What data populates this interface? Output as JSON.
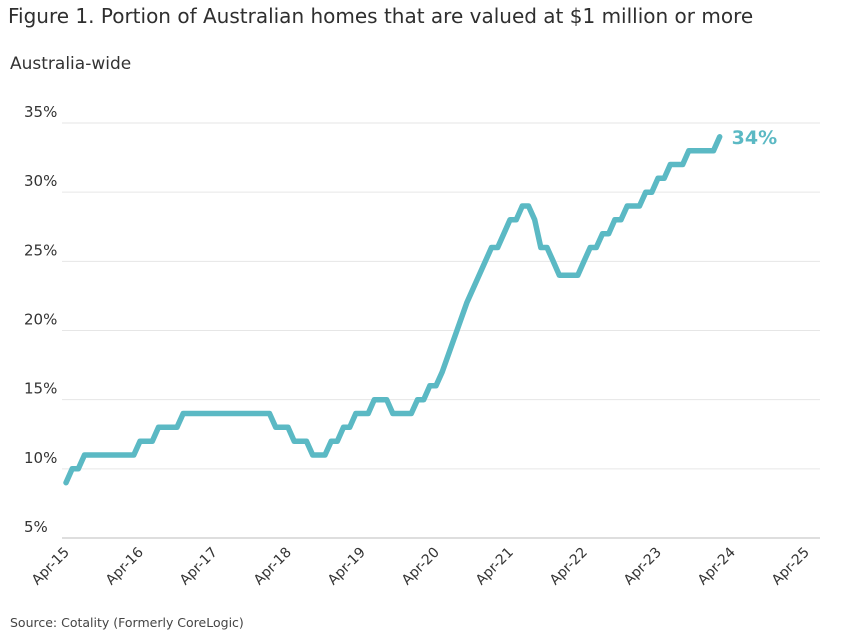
{
  "page": {
    "title": "Figure 1. Portion of Australian homes that are valued at $1 million or more",
    "subtitle": "Australia-wide",
    "source": "Source: Cotality (Formerly CoreLogic)"
  },
  "chart_data": {
    "type": "line",
    "title": "Figure 1. Portion of Australian homes that are valued at $1 million or more",
    "subtitle": "Australia-wide",
    "xlabel": "",
    "ylabel": "",
    "ylim": [
      5,
      35
    ],
    "yticks": [
      5,
      10,
      15,
      20,
      25,
      30,
      35
    ],
    "ytick_labels": [
      "5%",
      "10%",
      "15%",
      "20%",
      "25%",
      "30%",
      "35%"
    ],
    "xticks": [
      {
        "label": "Apr-15",
        "month": 0
      },
      {
        "label": "Apr-16",
        "month": 12
      },
      {
        "label": "Apr-17",
        "month": 24
      },
      {
        "label": "Apr-18",
        "month": 36
      },
      {
        "label": "Apr-19",
        "month": 48
      },
      {
        "label": "Apr-20",
        "month": 60
      },
      {
        "label": "Apr-21",
        "month": 72
      },
      {
        "label": "Apr-22",
        "month": 84
      },
      {
        "label": "Apr-23",
        "month": 96
      },
      {
        "label": "Apr-24",
        "month": 108
      },
      {
        "label": "Apr-25",
        "month": 120
      }
    ],
    "grid": "horizontal",
    "line_color": "#5bb9c4",
    "end_label": "34%",
    "series": [
      {
        "name": "",
        "points": [
          [
            0,
            9
          ],
          [
            1,
            10
          ],
          [
            2,
            10
          ],
          [
            3,
            11
          ],
          [
            11,
            11
          ],
          [
            12,
            12
          ],
          [
            14,
            12
          ],
          [
            15,
            13
          ],
          [
            18,
            13
          ],
          [
            19,
            14
          ],
          [
            30,
            14
          ],
          [
            33,
            14
          ],
          [
            34,
            13
          ],
          [
            36,
            13
          ],
          [
            37,
            12
          ],
          [
            39,
            12
          ],
          [
            40,
            11
          ],
          [
            42,
            11
          ],
          [
            43,
            12
          ],
          [
            44,
            12
          ],
          [
            45,
            13
          ],
          [
            46,
            13
          ],
          [
            47,
            14
          ],
          [
            49,
            14
          ],
          [
            50,
            15
          ],
          [
            52,
            15
          ],
          [
            53,
            14
          ],
          [
            56,
            14
          ],
          [
            57,
            15
          ],
          [
            58,
            15
          ],
          [
            59,
            16
          ],
          [
            60,
            16
          ],
          [
            61,
            17
          ],
          [
            65,
            22
          ],
          [
            69,
            26
          ],
          [
            70,
            26
          ],
          [
            72,
            28
          ],
          [
            73,
            28
          ],
          [
            74,
            29
          ],
          [
            75,
            29
          ],
          [
            76,
            28
          ],
          [
            77,
            26
          ],
          [
            78,
            26
          ],
          [
            79,
            25
          ],
          [
            80,
            24
          ],
          [
            83,
            24
          ],
          [
            84,
            25
          ],
          [
            85,
            26
          ],
          [
            86,
            26
          ],
          [
            87,
            27
          ],
          [
            88,
            27
          ],
          [
            89,
            28
          ],
          [
            90,
            28
          ],
          [
            91,
            29
          ],
          [
            93,
            29
          ],
          [
            94,
            30
          ],
          [
            95,
            30
          ],
          [
            96,
            31
          ],
          [
            97,
            31
          ],
          [
            98,
            32
          ],
          [
            100,
            32
          ],
          [
            101,
            33
          ],
          [
            104,
            33
          ],
          [
            105,
            33
          ],
          [
            106,
            34
          ]
        ]
      }
    ]
  }
}
